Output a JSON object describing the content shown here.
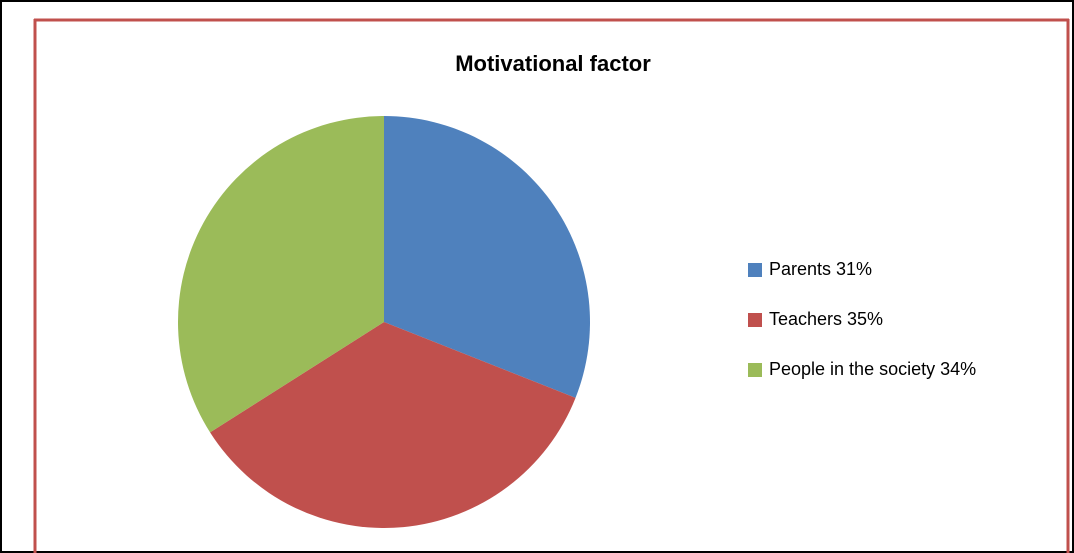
{
  "chart_data": {
    "type": "pie",
    "title": "Motivational factor",
    "categories": [
      "Parents 31%",
      "Teachers 35%",
      "People in the society 34%"
    ],
    "values": [
      31,
      35,
      34
    ],
    "colors": [
      "#4f81bd",
      "#c0504d",
      "#9bbb59"
    ],
    "legend": "right"
  }
}
